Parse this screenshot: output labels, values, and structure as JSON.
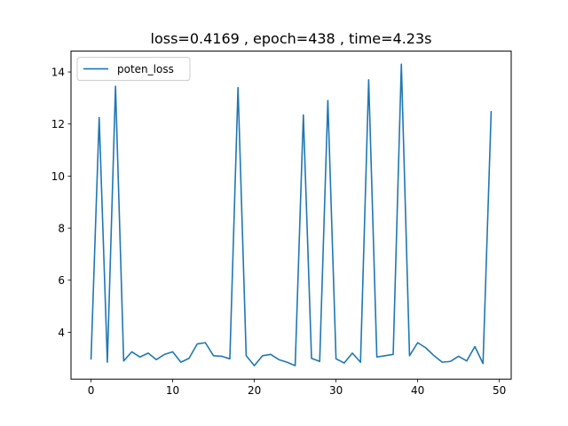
{
  "chart_data": {
    "type": "line",
    "title": "loss=0.4169 , epoch=438 , time=4.23s",
    "xlabel": "",
    "ylabel": "",
    "xlim": [
      -2.45,
      51.45
    ],
    "ylim": [
      2.2,
      14.8
    ],
    "x_ticks": [
      0,
      10,
      20,
      30,
      40,
      50
    ],
    "y_ticks": [
      4,
      6,
      8,
      10,
      12,
      14
    ],
    "grid": false,
    "legend_position": "upper-left",
    "color": "#1f77b4",
    "series": [
      {
        "name": "poten_loss",
        "x": [
          0,
          1,
          2,
          3,
          4,
          5,
          6,
          7,
          8,
          9,
          10,
          11,
          12,
          13,
          14,
          15,
          16,
          17,
          18,
          19,
          20,
          21,
          22,
          23,
          24,
          25,
          26,
          27,
          28,
          29,
          30,
          31,
          32,
          33,
          34,
          35,
          36,
          37,
          38,
          39,
          40,
          41,
          42,
          43,
          44,
          45,
          46,
          47,
          48,
          49
        ],
        "values": [
          2.95,
          12.25,
          2.85,
          13.45,
          2.9,
          3.25,
          3.05,
          3.2,
          2.95,
          3.15,
          3.25,
          2.85,
          3.0,
          3.55,
          3.6,
          3.1,
          3.08,
          2.98,
          13.4,
          3.1,
          2.72,
          3.1,
          3.15,
          2.95,
          2.85,
          2.72,
          12.35,
          3.0,
          2.88,
          12.9,
          2.98,
          2.82,
          3.2,
          2.85,
          13.7,
          3.05,
          3.1,
          3.15,
          14.3,
          3.1,
          3.6,
          3.4,
          3.1,
          2.85,
          2.88,
          3.08,
          2.9,
          3.45,
          2.8,
          12.5
        ]
      }
    ]
  }
}
